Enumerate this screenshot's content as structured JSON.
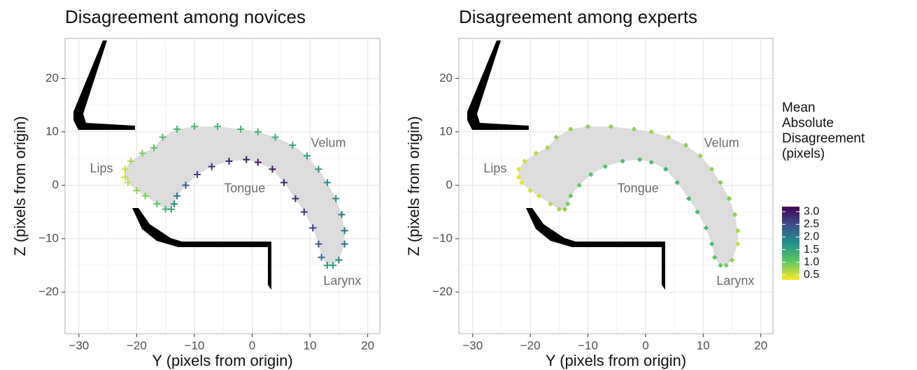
{
  "chart_data": [
    {
      "type": "scatter",
      "title": "Disagreement among novices",
      "x_label": "Y (pixels from origin)",
      "y_label": "Z (pixels from origin)",
      "xlim": [
        -32.4,
        22.1
      ],
      "ylim": [
        -27.8,
        27.5
      ],
      "xticks": [
        {
          "value": -30,
          "label": "−30"
        },
        {
          "value": -20,
          "label": "−20"
        },
        {
          "value": -10,
          "label": "−10"
        },
        0,
        10,
        20
      ],
      "yticks": [
        {
          "value": -20,
          "label": "−20"
        },
        {
          "value": -10,
          "label": "−10"
        },
        0,
        10,
        20
      ],
      "grid": true,
      "annotations": [
        {
          "text": "Lips",
          "x": -26.1,
          "y": 3
        },
        {
          "text": "Tongue",
          "x": -1.3,
          "y": -0.7
        },
        {
          "text": "Velum",
          "x": 13.2,
          "y": 7.8
        },
        {
          "text": "Larynx",
          "x": 15.6,
          "y": -18
        }
      ],
      "x": [
        -22,
        -21,
        -19,
        -17,
        -15.5,
        -13,
        -10,
        -6,
        -2,
        1,
        4,
        7,
        9.5,
        11.5,
        13,
        14.5,
        15.5,
        16,
        16,
        15,
        14,
        13,
        12,
        11.5,
        10.5,
        9,
        7.5,
        5.5,
        3.5,
        1,
        -1,
        -4,
        -7,
        -9.5,
        -11.5,
        -13,
        -13.5,
        -14,
        -15,
        -16.5,
        -18.5,
        -20,
        -21.5,
        -22
      ],
      "y": [
        3,
        4.5,
        6,
        7,
        9,
        10.5,
        11,
        11,
        10.5,
        10,
        9,
        7.5,
        5.5,
        3,
        0.5,
        -2.5,
        -5.5,
        -8.5,
        -11,
        -14,
        -15,
        -15,
        -13.5,
        -11,
        -8,
        -5,
        -2.5,
        0.5,
        3,
        4.3,
        4.8,
        4.5,
        3.5,
        2,
        0,
        -2,
        -3.5,
        -4.5,
        -4.5,
        -3.5,
        -2,
        -1,
        0.5,
        1.5
      ],
      "disagreement": [
        0.5,
        0.7,
        0.9,
        1.1,
        1.2,
        1.3,
        1.3,
        1.3,
        1.3,
        1.3,
        1.4,
        1.5,
        1.6,
        1.7,
        1.8,
        1.9,
        2.0,
        2.1,
        2.1,
        1.9,
        1.6,
        1.6,
        2.2,
        2.4,
        2.6,
        2.7,
        2.8,
        2.9,
        3.0,
        3.0,
        3.0,
        2.9,
        2.8,
        2.6,
        2.4,
        2.1,
        1.7,
        1.4,
        1.3,
        1.1,
        0.9,
        0.8,
        0.6,
        0.5
      ]
    },
    {
      "type": "scatter",
      "title": "Disagreement among experts",
      "x_label": "Y (pixels from origin)",
      "y_label": "Z (pixels from origin)",
      "xlim": [
        -32.4,
        22.1
      ],
      "ylim": [
        -27.8,
        27.5
      ],
      "xticks": [
        {
          "value": -30,
          "label": "−30"
        },
        {
          "value": -20,
          "label": "−20"
        },
        {
          "value": -10,
          "label": "−10"
        },
        0,
        10,
        20
      ],
      "yticks": [
        {
          "value": -20,
          "label": "−20"
        },
        {
          "value": -10,
          "label": "−10"
        },
        0,
        10,
        20
      ],
      "grid": true,
      "annotations": [
        {
          "text": "Lips",
          "x": -26.1,
          "y": 3
        },
        {
          "text": "Tongue",
          "x": -1.3,
          "y": -0.7
        },
        {
          "text": "Velum",
          "x": 13.2,
          "y": 7.8
        },
        {
          "text": "Larynx",
          "x": 15.6,
          "y": -18
        }
      ],
      "x": [
        -22,
        -21,
        -19,
        -17,
        -15.5,
        -13,
        -10,
        -6,
        -2,
        1,
        4,
        7,
        9.5,
        11.5,
        13,
        14.5,
        15.5,
        16,
        16,
        15,
        14,
        13,
        12,
        11.5,
        10.5,
        9,
        7.5,
        5.5,
        3.5,
        1,
        -1,
        -4,
        -7,
        -9.5,
        -11.5,
        -13,
        -13.5,
        -14,
        -15,
        -16.5,
        -18.5,
        -20,
        -21.5,
        -22
      ],
      "y": [
        3,
        4.5,
        6,
        7,
        9,
        10.5,
        11,
        11,
        10.5,
        10,
        9,
        7.5,
        5.5,
        3,
        0.5,
        -2.5,
        -5.5,
        -8.5,
        -11,
        -14,
        -15,
        -15,
        -13.5,
        -11,
        -8,
        -5,
        -2.5,
        0.5,
        3,
        4.3,
        4.8,
        4.5,
        3.5,
        2,
        0,
        -2,
        -3.5,
        -4.5,
        -4.5,
        -3.5,
        -2,
        -1,
        0.5,
        1.5
      ],
      "disagreement": [
        0.4,
        0.5,
        0.6,
        0.7,
        0.8,
        0.8,
        0.8,
        0.8,
        0.8,
        0.7,
        0.7,
        0.8,
        0.8,
        0.8,
        0.9,
        0.9,
        0.8,
        0.7,
        0.6,
        0.8,
        0.9,
        1.0,
        1.1,
        1.2,
        1.2,
        1.2,
        1.3,
        1.3,
        1.3,
        1.2,
        1.2,
        1.2,
        1.1,
        1.1,
        1.0,
        1.0,
        0.9,
        0.8,
        0.7,
        0.6,
        0.5,
        0.5,
        0.4,
        0.4
      ]
    }
  ],
  "colorbar": {
    "title_lines": [
      "Mean",
      "Absolute",
      "Disagreement",
      "(pixels)"
    ],
    "lim": [
      0.3,
      3.2
    ],
    "ticks": [
      0.5,
      {
        "value": 1,
        "label": "1.0"
      },
      1.5,
      {
        "value": 2,
        "label": "2.0"
      },
      2.5,
      {
        "value": 3,
        "label": "3.0"
      }
    ]
  }
}
